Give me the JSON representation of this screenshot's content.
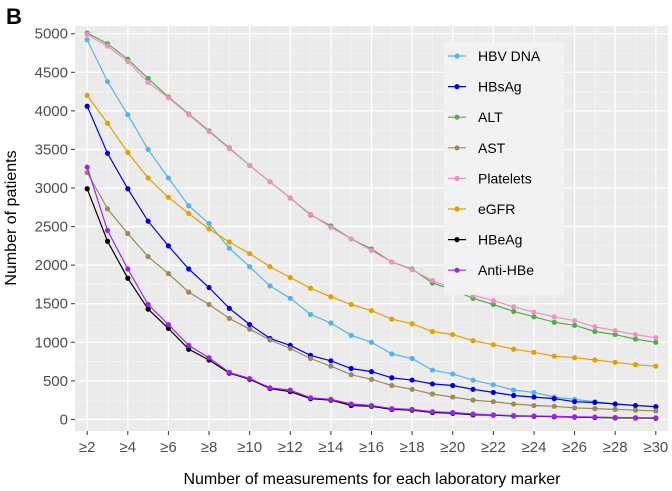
{
  "panel_label": "B",
  "colors": {
    "panel_bg": "#ebebeb",
    "grid_major": "#ffffff",
    "grid_minor": "#f4f4f4",
    "axis_text": "#4d4d4d",
    "legend_bg": "#f2f2f2"
  },
  "chart_data": {
    "type": "line",
    "title": "",
    "xlabel": "Number of measurements for each laboratory marker",
    "ylabel": "Number of patients",
    "x": [
      "≥2",
      "≥3",
      "≥4",
      "≥5",
      "≥6",
      "≥7",
      "≥8",
      "≥9",
      "≥10",
      "≥11",
      "≥12",
      "≥13",
      "≥14",
      "≥15",
      "≥16",
      "≥17",
      "≥18",
      "≥19",
      "≥20",
      "≥21",
      "≥22",
      "≥23",
      "≥24",
      "≥25",
      "≥26",
      "≥27",
      "≥28",
      "≥29",
      "≥30"
    ],
    "x_tick_labels": [
      "≥2",
      "≥4",
      "≥6",
      "≥8",
      "≥10",
      "≥12",
      "≥14",
      "≥16",
      "≥18",
      "≥20",
      "≥22",
      "≥24",
      "≥26",
      "≥28",
      "≥30"
    ],
    "ylim": [
      -150,
      5100
    ],
    "y_ticks": [
      0,
      500,
      1000,
      1500,
      2000,
      2500,
      3000,
      3500,
      4000,
      4500,
      5000
    ],
    "grid": true,
    "legend_position": "top-right",
    "series": [
      {
        "name": "HBV DNA",
        "color": "#56b4e9",
        "values": [
          4920,
          4380,
          3950,
          3500,
          3130,
          2770,
          2540,
          2220,
          1980,
          1730,
          1570,
          1360,
          1250,
          1090,
          1000,
          850,
          790,
          640,
          590,
          510,
          450,
          380,
          350,
          290,
          260,
          230,
          200,
          180,
          165
        ]
      },
      {
        "name": "HBsAg",
        "color": "#0000e0",
        "values": [
          4060,
          3450,
          2990,
          2570,
          2250,
          1950,
          1710,
          1440,
          1230,
          1050,
          960,
          830,
          760,
          660,
          620,
          540,
          510,
          460,
          440,
          390,
          350,
          310,
          290,
          270,
          230,
          220,
          200,
          180,
          165
        ]
      },
      {
        "name": "ALT",
        "color": "#4daf4a",
        "values": [
          5010,
          4870,
          4670,
          4420,
          4180,
          3960,
          3740,
          3520,
          3290,
          3080,
          2870,
          2650,
          2510,
          2340,
          2210,
          2040,
          1950,
          1770,
          1680,
          1570,
          1490,
          1400,
          1330,
          1260,
          1220,
          1140,
          1100,
          1040,
          1000
        ]
      },
      {
        "name": "AST",
        "color": "#9b8a5c",
        "values": [
          3200,
          2730,
          2410,
          2110,
          1890,
          1650,
          1490,
          1310,
          1170,
          1030,
          920,
          790,
          690,
          580,
          520,
          440,
          390,
          330,
          290,
          250,
          230,
          200,
          180,
          170,
          150,
          140,
          130,
          120,
          110
        ]
      },
      {
        "name": "Platelets",
        "color": "#f08fc0",
        "values": [
          4990,
          4840,
          4640,
          4370,
          4170,
          3950,
          3730,
          3510,
          3290,
          3080,
          2870,
          2660,
          2490,
          2340,
          2190,
          2040,
          1940,
          1800,
          1700,
          1610,
          1540,
          1460,
          1390,
          1330,
          1280,
          1200,
          1150,
          1100,
          1060
        ]
      },
      {
        "name": "eGFR",
        "color": "#e69f00",
        "values": [
          4200,
          3840,
          3460,
          3130,
          2880,
          2670,
          2470,
          2300,
          2150,
          1980,
          1840,
          1700,
          1590,
          1490,
          1410,
          1300,
          1240,
          1140,
          1100,
          1020,
          970,
          910,
          870,
          820,
          800,
          770,
          740,
          710,
          690
        ]
      },
      {
        "name": "HBeAg",
        "color": "#000000",
        "values": [
          2990,
          2310,
          1830,
          1430,
          1180,
          910,
          770,
          600,
          520,
          400,
          360,
          270,
          250,
          180,
          170,
          130,
          120,
          90,
          80,
          60,
          55,
          45,
          40,
          35,
          30,
          25,
          20,
          18,
          15
        ]
      },
      {
        "name": "Anti-HBe",
        "color": "#a020f0",
        "values": [
          3270,
          2450,
          1950,
          1490,
          1230,
          960,
          800,
          610,
          530,
          410,
          380,
          280,
          260,
          200,
          180,
          140,
          130,
          100,
          90,
          70,
          60,
          50,
          45,
          40,
          35,
          30,
          25,
          22,
          20
        ]
      }
    ]
  }
}
